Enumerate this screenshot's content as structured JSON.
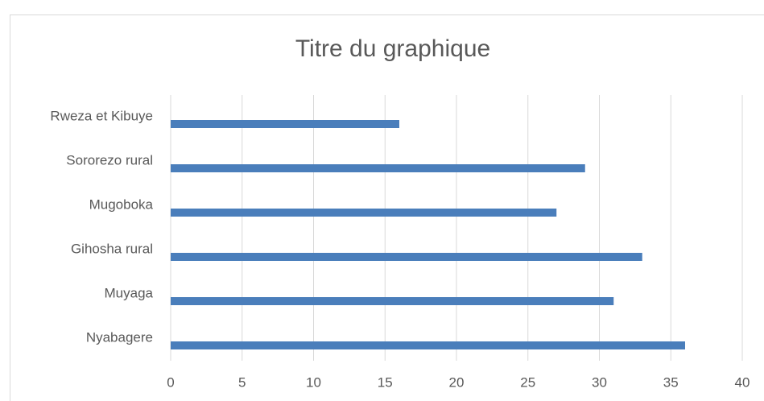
{
  "chart_data": {
    "type": "barh",
    "title": "Titre du graphique",
    "categories": [
      "Nyabagere",
      "Muyaga",
      "Gihosha rural",
      "Mugoboka",
      "Sororezo rural",
      "Rweza et Kibuye"
    ],
    "values": [
      36,
      31,
      33,
      27,
      29,
      16
    ],
    "color": "#4a7ebb",
    "xlim": [
      0,
      40
    ],
    "xticks": [
      0,
      5,
      10,
      15,
      20,
      25,
      30,
      35,
      40
    ],
    "grid": true
  }
}
